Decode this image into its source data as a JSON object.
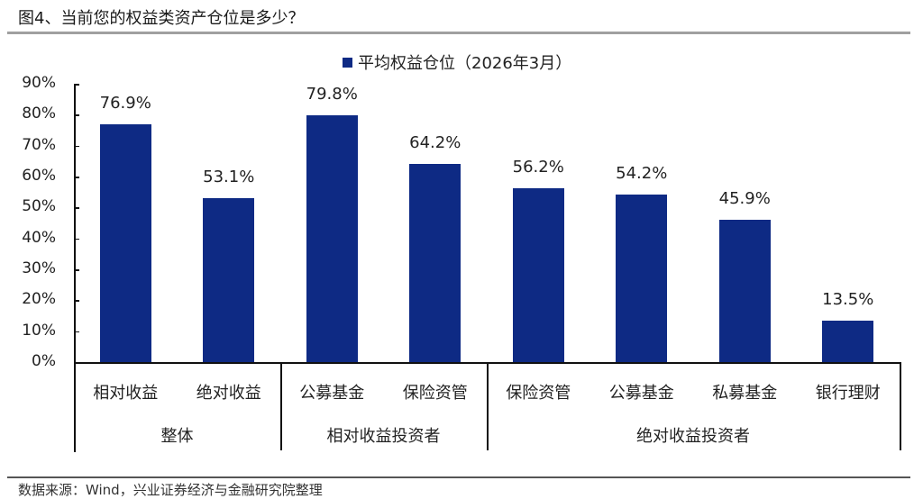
{
  "header": {
    "title": "图4、当前您的权益类资产仓位是多少？"
  },
  "legend": {
    "label": "平均权益仓位（2026年3月）",
    "color": "#0e2a84"
  },
  "footer": {
    "source": "数据来源：Wind，兴业证券经济与金融研究院整理"
  },
  "axis": {
    "yticks": [
      "0%",
      "10%",
      "20%",
      "30%",
      "40%",
      "50%",
      "60%",
      "70%",
      "80%",
      "90%"
    ]
  },
  "groups": [
    {
      "label": "整体"
    },
    {
      "label": "相对收益投资者"
    },
    {
      "label": "绝对收益投资者"
    }
  ],
  "bars": [
    {
      "category": "相对收益",
      "value_label": "76.9%",
      "value": 76.9
    },
    {
      "category": "绝对收益",
      "value_label": "53.1%",
      "value": 53.1
    },
    {
      "category": "公募基金",
      "value_label": "79.8%",
      "value": 79.8
    },
    {
      "category": "保险资管",
      "value_label": "64.2%",
      "value": 64.2
    },
    {
      "category": "保险资管",
      "value_label": "56.2%",
      "value": 56.2
    },
    {
      "category": "公募基金",
      "value_label": "54.2%",
      "value": 54.2
    },
    {
      "category": "私募基金",
      "value_label": "45.9%",
      "value": 45.9
    },
    {
      "category": "银行理财",
      "value_label": "13.5%",
      "value": 13.5
    }
  ],
  "chart_data": {
    "type": "bar",
    "title": "图4、当前您的权益类资产仓位是多少？",
    "categories": [
      "整体-相对收益",
      "整体-绝对收益",
      "相对收益投资者-公募基金",
      "相对收益投资者-保险资管",
      "绝对收益投资者-保险资管",
      "绝对收益投资者-公募基金",
      "绝对收益投资者-私募基金",
      "绝对收益投资者-银行理财"
    ],
    "category_levels": {
      "level1": [
        "相对收益",
        "绝对收益",
        "公募基金",
        "保险资管",
        "保险资管",
        "公募基金",
        "私募基金",
        "银行理财"
      ],
      "level2": [
        {
          "label": "整体",
          "span": 2
        },
        {
          "label": "相对收益投资者",
          "span": 2
        },
        {
          "label": "绝对收益投资者",
          "span": 4
        }
      ]
    },
    "series": [
      {
        "name": "平均权益仓位（2026年3月）",
        "values": [
          76.9,
          53.1,
          79.8,
          64.2,
          56.2,
          54.2,
          45.9,
          13.5
        ],
        "color": "#0e2a84"
      }
    ],
    "xlabel": "",
    "ylabel": "",
    "ylim": [
      0,
      90
    ],
    "yticks": [
      "0%",
      "10%",
      "20%",
      "30%",
      "40%",
      "50%",
      "60%",
      "70%",
      "80%",
      "90%"
    ],
    "grid": false,
    "legend_position": "top",
    "data_labels": true,
    "source": "数据来源：Wind，兴业证券经济与金融研究院整理"
  }
}
